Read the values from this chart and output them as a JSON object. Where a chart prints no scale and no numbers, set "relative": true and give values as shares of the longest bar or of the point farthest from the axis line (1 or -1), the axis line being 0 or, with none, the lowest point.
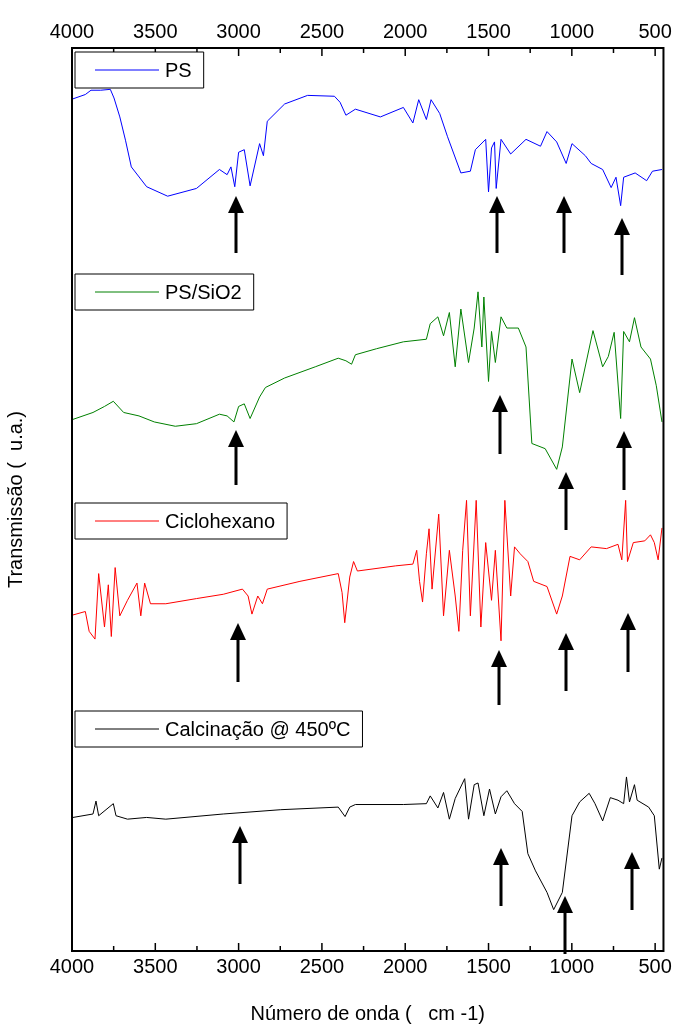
{
  "chart_data": {
    "type": "line",
    "relative": true,
    "xlabel": "Número de onda (   cm -1)",
    "ylabel": "Transmissão (  u.a.)",
    "legend": "top left",
    "xlim": [
      4000,
      450
    ],
    "xticks": [
      4000,
      {
        "value": 3750,
        "label": null
      },
      3500,
      {
        "value": 3250,
        "label": null
      },
      3000,
      {
        "value": 2750,
        "label": null
      },
      2500,
      {
        "value": 2250,
        "label": null
      },
      2000,
      {
        "value": 1750,
        "label": null
      },
      1500,
      {
        "value": 1250,
        "label": null
      },
      1000,
      {
        "value": 750,
        "label": null
      },
      500
    ],
    "x2lim": [
      4000,
      450
    ],
    "x2ticks": [
      4000,
      {
        "value": 3750,
        "label": null
      },
      3500,
      {
        "value": 3250,
        "label": null
      },
      3000,
      {
        "value": 2750,
        "label": null
      },
      2500,
      {
        "value": 2250,
        "label": null
      },
      2000,
      {
        "value": 1750,
        "label": null
      },
      1500,
      {
        "value": 1250,
        "label": null
      },
      1000,
      {
        "value": 750,
        "label": null
      },
      500
    ],
    "series": [
      {
        "name": "PS",
        "color": "#0000ff",
        "x": [
          3994,
          3920,
          3886,
          3828,
          3770,
          3748,
          3713,
          3679,
          3644,
          3552,
          3426,
          3253,
          3115,
          3069,
          3046,
          3023,
          3000,
          2966,
          2931,
          2874,
          2851,
          2828,
          2724,
          2586,
          2425,
          2391,
          2356,
          2299,
          2149,
          2011,
          1954,
          1919,
          1873,
          1845,
          1793,
          1746,
          1666,
          1609,
          1579,
          1517,
          1500,
          1482,
          1464,
          1454,
          1425,
          1367,
          1275,
          1188,
          1149,
          1091,
          1034,
          999,
          919,
          884,
          815,
          764,
          735,
          707,
          689,
          620,
          551,
          516,
          459
        ],
        "values": [
          0.989,
          0.994,
          0.999,
          0.999,
          1.0,
          0.99,
          0.968,
          0.941,
          0.91,
          0.887,
          0.876,
          0.885,
          0.907,
          0.901,
          0.91,
          0.887,
          0.927,
          0.93,
          0.888,
          0.937,
          0.923,
          0.963,
          0.983,
          0.993,
          0.992,
          0.985,
          0.97,
          0.977,
          0.968,
          0.979,
          0.961,
          0.988,
          0.965,
          0.988,
          0.972,
          0.945,
          0.903,
          0.905,
          0.93,
          0.942,
          0.881,
          0.932,
          0.939,
          0.885,
          0.942,
          0.925,
          0.942,
          0.934,
          0.951,
          0.939,
          0.914,
          0.937,
          0.923,
          0.914,
          0.907,
          0.886,
          0.898,
          0.865,
          0.898,
          0.903,
          0.894,
          0.905,
          0.907
        ]
      },
      {
        "name": "PS/SiO2",
        "color": "#008000",
        "x": [
          3994,
          3874,
          3805,
          3752,
          3690,
          3598,
          3506,
          3380,
          3253,
          3115,
          3069,
          3028,
          3000,
          2966,
          2931,
          2874,
          2839,
          2724,
          2540,
          2402,
          2356,
          2322,
          2299,
          2172,
          2011,
          1873,
          1850,
          1804,
          1770,
          1735,
          1700,
          1666,
          1620,
          1586,
          1563,
          1540,
          1528,
          1500,
          1482,
          1459,
          1425,
          1390,
          1321,
          1275,
          1240,
          1160,
          1091,
          1057,
          999,
          953,
          873,
          815,
          781,
          746,
          707,
          689,
          654,
          624,
          585,
          528,
          493,
          459
        ],
        "values": [
          0.617,
          0.625,
          0.632,
          0.638,
          0.625,
          0.621,
          0.614,
          0.609,
          0.612,
          0.623,
          0.621,
          0.614,
          0.632,
          0.635,
          0.618,
          0.643,
          0.654,
          0.665,
          0.678,
          0.688,
          0.685,
          0.681,
          0.692,
          0.699,
          0.707,
          0.71,
          0.728,
          0.736,
          0.714,
          0.741,
          0.678,
          0.745,
          0.683,
          0.723,
          0.765,
          0.701,
          0.759,
          0.661,
          0.719,
          0.683,
          0.736,
          0.723,
          0.723,
          0.701,
          0.589,
          0.583,
          0.559,
          0.585,
          0.687,
          0.648,
          0.72,
          0.678,
          0.69,
          0.718,
          0.618,
          0.719,
          0.707,
          0.735,
          0.701,
          0.687,
          0.656,
          0.614
        ]
      },
      {
        "name": "Ciclohexano",
        "color": "#ff0000",
        "x": [
          3994,
          3920,
          3897,
          3862,
          3840,
          3805,
          3782,
          3764,
          3741,
          3713,
          3667,
          3610,
          3587,
          3564,
          3529,
          3437,
          3253,
          3092,
          2977,
          2943,
          2920,
          2885,
          2857,
          2828,
          2632,
          2402,
          2379,
          2363,
          2333,
          2310,
          2287,
          2057,
          1954,
          1931,
          1914,
          1896,
          1873,
          1857,
          1839,
          1799,
          1770,
          1735,
          1700,
          1678,
          1655,
          1632,
          1609,
          1574,
          1546,
          1517,
          1482,
          1459,
          1425,
          1402,
          1367,
          1344,
          1310,
          1264,
          1229,
          1149,
          1091,
          1057,
          1011,
          953,
          884,
          792,
          723,
          700,
          677,
          666,
          631,
          562,
          528,
          505,
          482,
          459
        ],
        "values": [
          0.39,
          0.394,
          0.371,
          0.362,
          0.438,
          0.376,
          0.425,
          0.365,
          0.445,
          0.389,
          0.407,
          0.427,
          0.389,
          0.427,
          0.403,
          0.403,
          0.409,
          0.414,
          0.42,
          0.412,
          0.391,
          0.412,
          0.403,
          0.42,
          0.429,
          0.438,
          0.416,
          0.381,
          0.434,
          0.452,
          0.441,
          0.447,
          0.449,
          0.465,
          0.429,
          0.405,
          0.461,
          0.49,
          0.42,
          0.507,
          0.389,
          0.465,
          0.412,
          0.371,
          0.465,
          0.523,
          0.389,
          0.523,
          0.376,
          0.474,
          0.407,
          0.465,
          0.36,
          0.523,
          0.412,
          0.469,
          0.461,
          0.452,
          0.429,
          0.423,
          0.391,
          0.412,
          0.458,
          0.454,
          0.469,
          0.467,
          0.472,
          0.454,
          0.523,
          0.452,
          0.474,
          0.476,
          0.483,
          0.474,
          0.454,
          0.491
        ]
      },
      {
        "name": "Calcinação @ 450ºC",
        "color": "#000000",
        "x": [
          3994,
          3874,
          3856,
          3840,
          3752,
          3736,
          3667,
          3552,
          3437,
          3092,
          2747,
          2402,
          2361,
          2333,
          2299,
          2011,
          1873,
          1850,
          1804,
          1770,
          1735,
          1700,
          1643,
          1620,
          1586,
          1563,
          1528,
          1494,
          1459,
          1425,
          1390,
          1344,
          1298,
          1264,
          1218,
          1149,
          1109,
          1057,
          999,
          953,
          896,
          861,
          815,
          769,
          723,
          689,
          672,
          654,
          624,
          608,
          539,
          505,
          475,
          459
        ],
        "values": [
          0.155,
          0.159,
          0.174,
          0.157,
          0.171,
          0.157,
          0.153,
          0.155,
          0.153,
          0.159,
          0.164,
          0.167,
          0.156,
          0.167,
          0.17,
          0.17,
          0.171,
          0.18,
          0.166,
          0.184,
          0.153,
          0.177,
          0.2,
          0.153,
          0.193,
          0.195,
          0.157,
          0.188,
          0.159,
          0.179,
          0.186,
          0.171,
          0.162,
          0.113,
          0.093,
          0.068,
          0.048,
          0.068,
          0.157,
          0.173,
          0.183,
          0.171,
          0.151,
          0.178,
          0.175,
          0.171,
          0.202,
          0.173,
          0.193,
          0.175,
          0.167,
          0.157,
          0.095,
          0.108
        ]
      }
    ]
  }
}
